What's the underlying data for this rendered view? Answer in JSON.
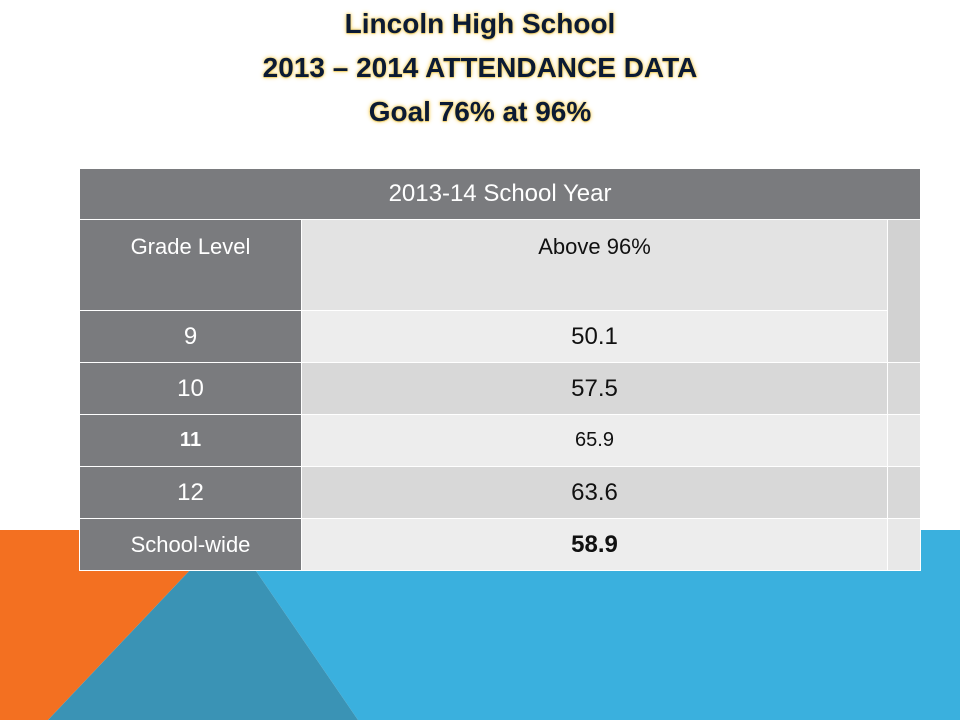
{
  "title": {
    "line1": "Lincoln High School",
    "line2": "2013 – 2014 ATTENDANCE DATA",
    "line3": "Goal 76% at 96%"
  },
  "colors": {
    "orange": "#f37021",
    "light_blue": "#3ab0de",
    "dark_blue": "#3a93b5",
    "header_gray": "#7a7b7e"
  },
  "table": {
    "header": "2013-14 School Year",
    "columns": [
      "Grade Level",
      "Above 96%"
    ],
    "rows": [
      {
        "grade": "9",
        "value": "50.1"
      },
      {
        "grade": "10",
        "value": "57.5"
      },
      {
        "grade": "11",
        "value": "65.9"
      },
      {
        "grade": "12",
        "value": "63.6"
      },
      {
        "grade": "School-wide",
        "value": "58.9"
      }
    ]
  }
}
